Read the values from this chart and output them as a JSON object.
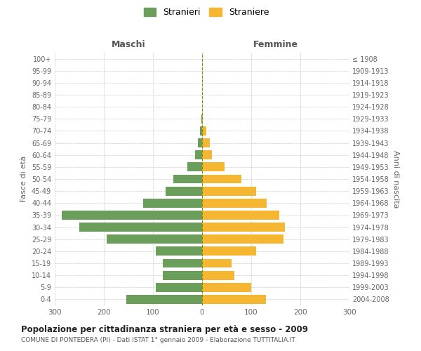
{
  "age_groups": [
    "0-4",
    "5-9",
    "10-14",
    "15-19",
    "20-24",
    "25-29",
    "30-34",
    "35-39",
    "40-44",
    "45-49",
    "50-54",
    "55-59",
    "60-64",
    "65-69",
    "70-74",
    "75-79",
    "80-84",
    "85-89",
    "90-94",
    "95-99",
    "100+"
  ],
  "birth_years": [
    "2004-2008",
    "1999-2003",
    "1994-1998",
    "1989-1993",
    "1984-1988",
    "1979-1983",
    "1974-1978",
    "1969-1973",
    "1964-1968",
    "1959-1963",
    "1954-1958",
    "1949-1953",
    "1944-1948",
    "1939-1943",
    "1934-1938",
    "1929-1933",
    "1924-1928",
    "1919-1923",
    "1914-1918",
    "1909-1913",
    "≤ 1908"
  ],
  "maschi": [
    155,
    95,
    80,
    80,
    95,
    195,
    250,
    285,
    120,
    75,
    58,
    30,
    15,
    8,
    5,
    2,
    0,
    0,
    0,
    0,
    0
  ],
  "femmine": [
    130,
    100,
    65,
    60,
    110,
    165,
    168,
    157,
    132,
    110,
    80,
    45,
    20,
    15,
    8,
    2,
    0,
    0,
    0,
    0,
    0
  ],
  "maschi_color": "#6a9e5a",
  "femmine_color": "#f5b731",
  "background_color": "#ffffff",
  "grid_color": "#cccccc",
  "title": "Popolazione per cittadinanza straniera per età e sesso - 2009",
  "subtitle": "COMUNE DI PONTEDERA (PI) - Dati ISTAT 1° gennaio 2009 - Elaborazione TUTTITALIA.IT",
  "ylabel_left": "Fasce di età",
  "ylabel_right": "Anni di nascita",
  "label_maschi": "Maschi",
  "label_femmine": "Femmine",
  "legend_maschi": "Stranieri",
  "legend_femmine": "Straniere",
  "xlim": 300,
  "bar_height": 0.75,
  "dpi": 100,
  "figsize": [
    6.0,
    5.0
  ]
}
